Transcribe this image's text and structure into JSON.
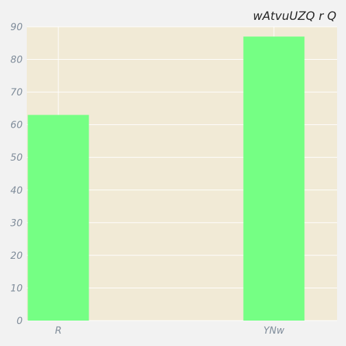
{
  "chart_data": {
    "type": "bar",
    "title": "wAtvuUZQ r Q",
    "xlabel": "",
    "ylabel": "",
    "categories": [
      "R",
      "YNw"
    ],
    "values": [
      63,
      87
    ],
    "ylim": [
      0,
      90
    ],
    "yticks": [
      "0",
      "10",
      "20",
      "30",
      "40",
      "50",
      "60",
      "70",
      "80",
      "90"
    ],
    "grid": true,
    "colors": {
      "bar": "#75ff84",
      "plot_background": "#f1ead6",
      "page_background": "#f2f2f2",
      "grid": "#ffffff",
      "tick_text": "#7f8c9a",
      "title_text": "#262626"
    }
  }
}
